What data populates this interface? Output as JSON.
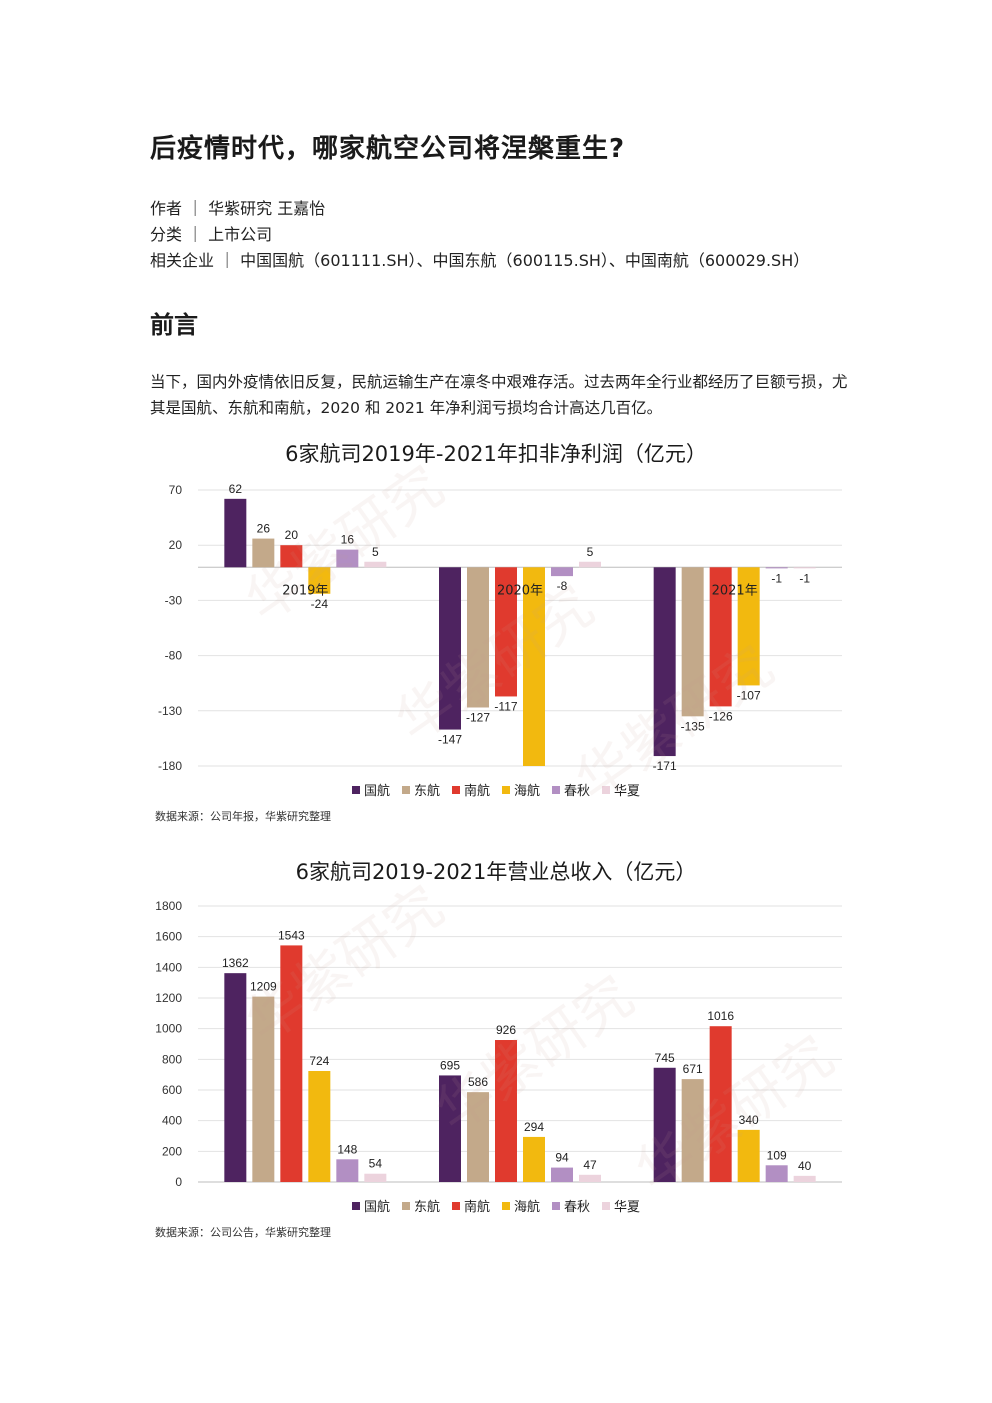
{
  "article": {
    "title": "后疫情时代，哪家航空公司将涅槃重生?",
    "author": "作者 ｜ 华紫研究 王嘉怡",
    "category": "分类 ｜ 上市公司",
    "companies": "相关企业 ｜ 中国国航（601111.SH）、中国东航（600115.SH）、中国南航（600029.SH）",
    "section_title": "前言",
    "intro": "当下，国内外疫情依旧反复，民航运输生产在凛冬中艰难存活。过去两年全行业都经历了巨额亏损，尤其是国航、东航和南航，2020 和 2021 年净利润亏损均合计高达几百亿。"
  },
  "watermark": "华紫研究",
  "colors": {
    "国航": "#4e2360",
    "东航": "#c3a98a",
    "南航": "#e03a2e",
    "海航": "#f2b90f",
    "春秋": "#b28fc3",
    "华夏": "#ecd3dd"
  },
  "chart_data": [
    {
      "type": "bar",
      "title": "6家航司2019年-2021年扣非净利润（亿元）",
      "categories": [
        "2019年",
        "2020年",
        "2021年"
      ],
      "series": [
        {
          "name": "国航",
          "values": [
            62,
            -147,
            -171
          ]
        },
        {
          "name": "东航",
          "values": [
            26,
            -127,
            -135
          ]
        },
        {
          "name": "南航",
          "values": [
            20,
            -117,
            -126
          ]
        },
        {
          "name": "海航",
          "values": [
            -24,
            -180,
            -107
          ]
        },
        {
          "name": "春秋",
          "values": [
            16,
            -8,
            -1
          ]
        },
        {
          "name": "华夏",
          "values": [
            5,
            5,
            -1
          ]
        }
      ],
      "data_labels": [
        [
          "62",
          "-147",
          "-171"
        ],
        [
          "26",
          "-127",
          "-135"
        ],
        [
          "20",
          "-117",
          "-126"
        ],
        [
          "-24",
          "",
          "-107"
        ],
        [
          "16",
          "-8",
          "-1"
        ],
        [
          "5",
          "5",
          "-1"
        ]
      ],
      "yticks": [
        70,
        20,
        -30,
        -80,
        -130,
        -180
      ],
      "ylim": [
        -180,
        70
      ],
      "grid": true,
      "category_labels_at_zero": true,
      "source": "数据来源：公司年报，华紫研究整理"
    },
    {
      "type": "bar",
      "title": "6家航司2019-2021年营业总收入（亿元）",
      "categories": [
        "2019年",
        "2020年",
        "2021年"
      ],
      "series": [
        {
          "name": "国航",
          "values": [
            1362,
            695,
            745
          ]
        },
        {
          "name": "东航",
          "values": [
            1209,
            586,
            671
          ]
        },
        {
          "name": "南航",
          "values": [
            1543,
            926,
            1016
          ]
        },
        {
          "name": "海航",
          "values": [
            724,
            294,
            340
          ]
        },
        {
          "name": "春秋",
          "values": [
            148,
            94,
            109
          ]
        },
        {
          "name": "华夏",
          "values": [
            54,
            47,
            40
          ]
        }
      ],
      "data_labels": [
        [
          "1362",
          "695",
          "745"
        ],
        [
          "1209",
          "586",
          "671"
        ],
        [
          "1543",
          "926",
          "1016"
        ],
        [
          "724",
          "294",
          "340"
        ],
        [
          "148",
          "94",
          "109"
        ],
        [
          "54",
          "47",
          "40"
        ]
      ],
      "yticks": [
        1800,
        1600,
        1400,
        1200,
        1000,
        800,
        600,
        400,
        200,
        0
      ],
      "ylim": [
        0,
        1800
      ],
      "grid": true,
      "category_labels_at_zero": false,
      "source": "数据来源：公司公告，华紫研究整理"
    }
  ]
}
